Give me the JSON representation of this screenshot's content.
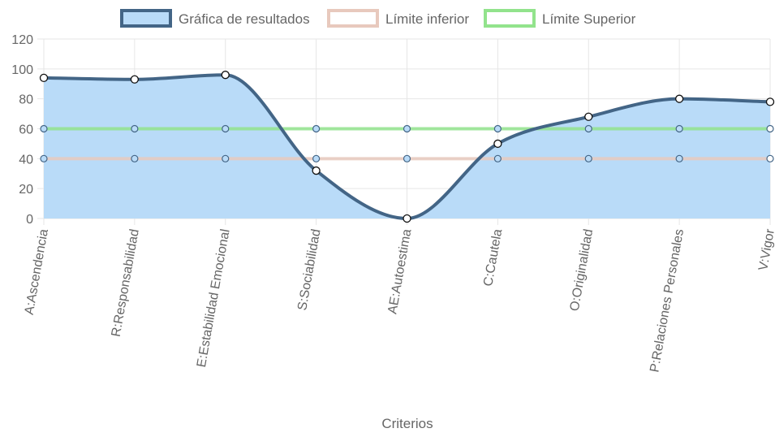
{
  "chart_data": {
    "type": "line",
    "categories": [
      "A:Ascendencia",
      "R:Responsabilidad",
      "E:Estabilidad Emocional",
      "S:Sociabilidad",
      "AE:Autoestima",
      "C:Cautela",
      "O:Originalidad",
      "P:Relaciones Personales",
      "V:Vigor"
    ],
    "series": [
      {
        "name": "Gráfica de resultados",
        "values": [
          94,
          93,
          96,
          32,
          0,
          50,
          68,
          80,
          78
        ],
        "color": "#436586",
        "fill": "#b9dbf8"
      },
      {
        "name": "Límite inferior",
        "values": [
          40,
          40,
          40,
          40,
          40,
          40,
          40,
          40,
          40
        ],
        "color": "#e8c9bd"
      },
      {
        "name": "Límite Superior",
        "values": [
          60,
          60,
          60,
          60,
          60,
          60,
          60,
          60,
          60
        ],
        "color": "#92e38c"
      }
    ],
    "xlabel": "Criterios",
    "ylabel": "",
    "ylim": [
      0,
      120
    ],
    "yticks": [
      "0",
      "20",
      "40",
      "60",
      "80",
      "100",
      "120"
    ],
    "grid": true,
    "legend_position": "top"
  }
}
